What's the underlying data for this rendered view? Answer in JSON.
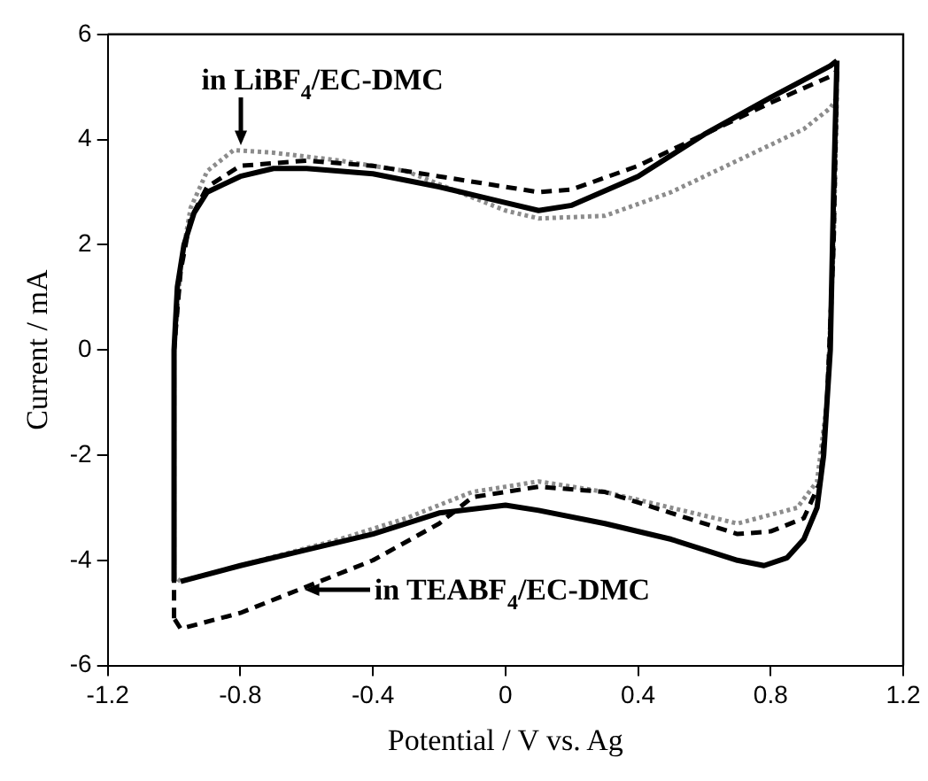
{
  "chart_data": {
    "type": "line",
    "xlabel": "Potential / V vs. Ag",
    "ylabel": "Current / mA",
    "xlim": [
      -1.2,
      1.2
    ],
    "xticks": [
      -1.2,
      -0.8,
      -0.4,
      0,
      0.4,
      0.8,
      1.2
    ],
    "ylim": [
      -6,
      6
    ],
    "yticks": [
      -6,
      -4,
      -2,
      0,
      2,
      4,
      6
    ],
    "grid": false,
    "legend": false,
    "marker": "none",
    "series": [
      {
        "color": "#000000",
        "line_style": "solid",
        "x": [
          -1.0,
          -1.0,
          -0.99,
          -0.97,
          -0.94,
          -0.9,
          -0.8,
          -0.7,
          -0.6,
          -0.4,
          -0.2,
          0,
          0.1,
          0.2,
          0.4,
          0.6,
          0.8,
          0.98,
          1.0
        ],
        "values": [
          -4.4,
          0,
          1.2,
          2.0,
          2.6,
          3.0,
          3.3,
          3.45,
          3.45,
          3.35,
          3.1,
          2.8,
          2.65,
          2.75,
          3.3,
          4.1,
          4.8,
          5.4,
          5.5
        ]
      },
      {
        "color": "#000000",
        "line_style": "solid",
        "x": [
          1.0,
          0.99,
          0.98,
          0.96,
          0.94,
          0.9,
          0.85,
          0.78,
          0.7,
          0.5,
          0.3,
          0.1,
          0,
          -0.2,
          -0.4,
          -0.6,
          -0.8,
          -0.98
        ],
        "values": [
          5.5,
          3,
          0,
          -2,
          -3,
          -3.6,
          -3.95,
          -4.1,
          -4.0,
          -3.6,
          -3.3,
          -3.05,
          -2.95,
          -3.1,
          -3.5,
          -3.8,
          -4.1,
          -4.4
        ]
      },
      {
        "color": "#000000",
        "line_style": "dashed",
        "x": [
          -1.0,
          -1.0,
          -0.98,
          -0.95,
          -0.9,
          -0.8,
          -0.6,
          -0.4,
          -0.2,
          0,
          0.1,
          0.2,
          0.4,
          0.6,
          0.8,
          0.98,
          1.0
        ],
        "values": [
          -5.1,
          0,
          1.5,
          2.5,
          3.1,
          3.5,
          3.6,
          3.5,
          3.3,
          3.1,
          3.0,
          3.05,
          3.5,
          4.1,
          4.7,
          5.2,
          5.3
        ]
      },
      {
        "color": "#000000",
        "line_style": "dashed",
        "x": [
          1.0,
          0.99,
          0.97,
          0.95,
          0.9,
          0.8,
          0.7,
          0.5,
          0.3,
          0.1,
          -0.1,
          -0.2,
          -0.4,
          -0.6,
          -0.8,
          -0.98,
          -1.0
        ],
        "values": [
          5.3,
          2,
          -1,
          -2.5,
          -3.2,
          -3.45,
          -3.5,
          -3.1,
          -2.7,
          -2.6,
          -2.8,
          -3.3,
          -4.0,
          -4.5,
          -5.0,
          -5.3,
          -5.1
        ]
      },
      {
        "color": "#8c8c8c",
        "line_style": "dotted",
        "x": [
          -1.0,
          -1.0,
          -0.98,
          -0.95,
          -0.9,
          -0.82,
          -0.7,
          -0.5,
          -0.3,
          -0.1,
          0,
          0.1,
          0.3,
          0.5,
          0.7,
          0.9,
          0.98,
          1.0
        ],
        "values": [
          -4.3,
          0,
          1.6,
          2.7,
          3.4,
          3.8,
          3.75,
          3.6,
          3.4,
          2.9,
          2.65,
          2.5,
          2.55,
          3.0,
          3.6,
          4.2,
          4.6,
          4.8
        ]
      },
      {
        "color": "#8c8c8c",
        "line_style": "dotted",
        "x": [
          1.0,
          0.99,
          0.97,
          0.94,
          0.88,
          0.7,
          0.5,
          0.3,
          0.1,
          -0.1,
          -0.3,
          -0.5,
          -0.8,
          -0.98,
          -1.0
        ],
        "values": [
          4.8,
          2,
          -1,
          -2.5,
          -3.0,
          -3.3,
          -3.0,
          -2.7,
          -2.5,
          -2.7,
          -3.2,
          -3.6,
          -4.1,
          -4.4,
          -4.3
        ]
      }
    ],
    "annotations": [
      {
        "text": "in LiBF$_{4}$/EC-DMC",
        "x": -0.8,
        "y": 3.8
      },
      {
        "text": "in TEABF$_{4}$/EC-DMC",
        "x": -0.62,
        "y": -4.55
      }
    ]
  }
}
